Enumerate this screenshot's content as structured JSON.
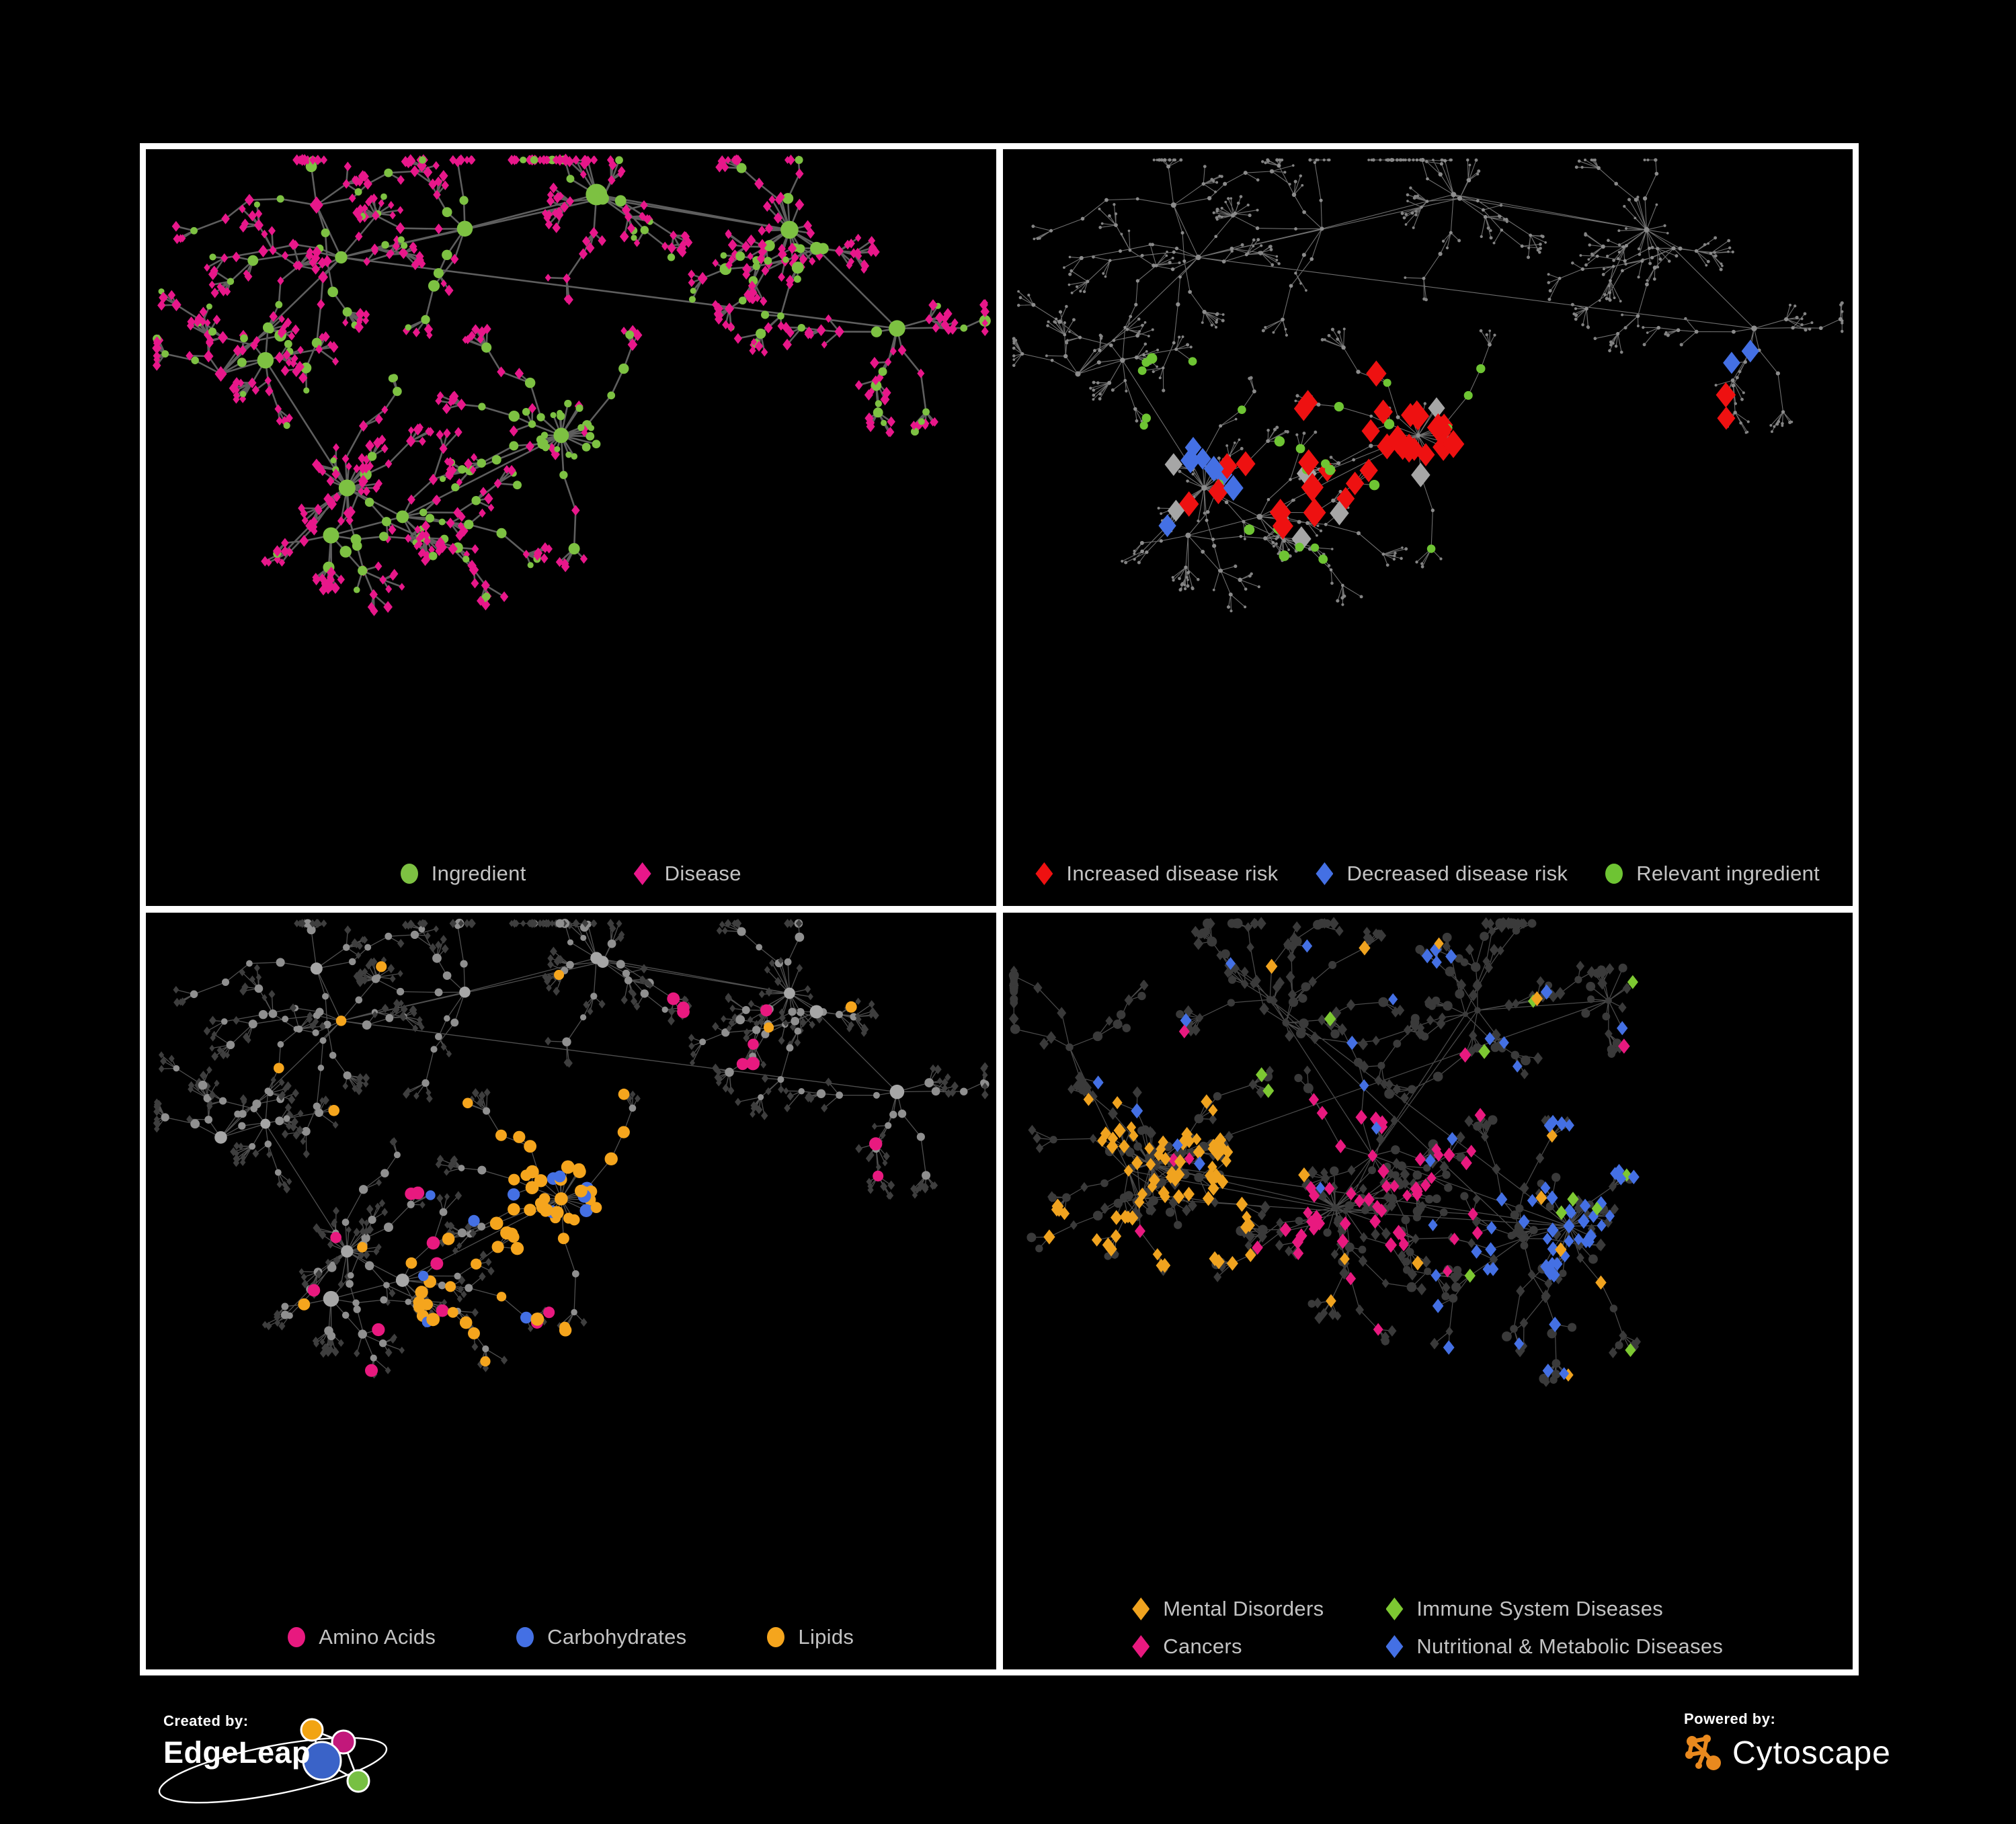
{
  "figure": {
    "background": "#000000",
    "frame_color": "#FFFFFF"
  },
  "panels": [
    {
      "name": "ingredient-disease-network",
      "layout": "A",
      "legend": [
        {
          "shape": "circle",
          "color": "#7DC142",
          "label": "Ingredient"
        },
        {
          "shape": "diamond",
          "color": "#E8178A",
          "label": "Disease"
        }
      ],
      "style": {
        "edge": {
          "color": "#6F6F6F",
          "width": 2.6,
          "opacity": 0.85
        },
        "mode": "twoClass",
        "circleColor": "#7DC142",
        "diamondColor": "#E8178A",
        "hub": {
          "circleProb": 0.72,
          "rCircle": [
            9,
            16
          ],
          "rDiamond": [
            8,
            11
          ]
        },
        "mid": {
          "circleProb": 0.4,
          "rCircle": [
            5,
            9
          ],
          "rDiamond": [
            5,
            7.5
          ]
        },
        "leaf": {
          "circleProb": 0.13,
          "rCircle": [
            4.5,
            6.5
          ],
          "rDiamond": [
            4.5,
            7
          ]
        },
        "boost": {
          "region": [
            0.42,
            0.3,
            0.2,
            0.22
          ],
          "circleProb": 0.8
        }
      }
    },
    {
      "name": "disease-risk-network",
      "layout": "A",
      "legend": [
        {
          "shape": "diamond",
          "color": "#EE1111",
          "label": "Increased disease risk"
        },
        {
          "shape": "diamond",
          "color": "#4470E4",
          "label": "Decreased disease risk"
        },
        {
          "shape": "circle",
          "color": "#6EC433",
          "label": "Relevant ingredient"
        }
      ],
      "style": {
        "edge": {
          "color": "#9C9C9C",
          "width": 1.1,
          "opacity": 0.7
        },
        "mode": "baseHighlight",
        "base": {
          "hub": {
            "shape": "circle",
            "color": "#8C8C8C",
            "r": [
              3,
              4.5
            ]
          },
          "mid": {
            "shape": "circle",
            "color": "#8C8C8C",
            "r": [
              2.2,
              3.2
            ]
          },
          "leaf": {
            "shape": "circle",
            "color": "#848484",
            "r": [
              1.8,
              2.6
            ]
          }
        },
        "highlights": [
          {
            "shape": "diamond",
            "color": "#EE1111",
            "size": [
              13,
              17
            ],
            "count": 28,
            "region": [
              0.34,
              0.28,
              0.38,
              0.26
            ]
          },
          {
            "shape": "diamond",
            "color": "#EE1111",
            "size": [
              13,
              16
            ],
            "count": 6,
            "region": [
              0.12,
              0.4,
              0.2,
              0.18
            ]
          },
          {
            "shape": "diamond",
            "color": "#EE1111",
            "size": [
              12,
              15
            ],
            "count": 3,
            "region": [
              0.42,
              0.66,
              0.28,
              0.16
            ]
          },
          {
            "shape": "diamond",
            "color": "#EE1111",
            "size": [
              12,
              15
            ],
            "count": 2,
            "region": [
              0.72,
              0.3,
              0.16,
              0.14
            ]
          },
          {
            "shape": "diamond",
            "color": "#4470E4",
            "size": [
              12,
              15
            ],
            "count": 7,
            "region": [
              0.1,
              0.4,
              0.16,
              0.2
            ]
          },
          {
            "shape": "diamond",
            "color": "#4470E4",
            "size": [
              12,
              14
            ],
            "count": 2,
            "region": [
              0.82,
              0.26,
              0.1,
              0.08
            ]
          },
          {
            "shape": "diamond",
            "color": "#A6A6A6",
            "size": [
              12,
              15
            ],
            "count": 7,
            "region": [
              0.14,
              0.34,
              0.52,
              0.26
            ]
          },
          {
            "shape": "circle",
            "color": "#6EC433",
            "size": [
              6,
              8
            ],
            "count": 22,
            "region": [
              0.12,
              0.28,
              0.52,
              0.3
            ]
          },
          {
            "shape": "circle",
            "color": "#6EC433",
            "size": [
              6,
              8
            ],
            "count": 5,
            "region": [
              0.3,
              0.58,
              0.38,
              0.2
            ]
          }
        ]
      }
    },
    {
      "name": "nutrient-class-network",
      "layout": "A",
      "legend": [
        {
          "shape": "circle",
          "color": "#E8197F",
          "label": "Amino Acids"
        },
        {
          "shape": "circle",
          "color": "#4470E4",
          "label": "Carbohydrates"
        },
        {
          "shape": "circle",
          "color": "#F5A51D",
          "label": "Lipids"
        }
      ],
      "style": {
        "edge": {
          "color": "#909090",
          "width": 1.3,
          "opacity": 0.55
        },
        "mode": "baseHighlight",
        "base": {
          "hub": {
            "shape": "circle",
            "color": "#A6A6A6",
            "r": [
              7,
              12
            ]
          },
          "mid": {
            "shape": "circle",
            "color": "#8F8F8F",
            "r": [
              4.5,
              7
            ]
          },
          "leaf": {
            "shape": "diamond",
            "color": "#3E3E3E",
            "r": [
              4,
              5.5
            ]
          }
        },
        "highlights": [
          {
            "shape": "circle",
            "color": "#F5A51D",
            "size": [
              8,
              10
            ],
            "count": 38,
            "region": [
              0.4,
              0.3,
              0.24,
              0.22
            ]
          },
          {
            "shape": "circle",
            "color": "#4470E4",
            "size": [
              8,
              10
            ],
            "count": 10,
            "region": [
              0.4,
              0.3,
              0.22,
              0.2
            ]
          },
          {
            "shape": "circle",
            "color": "#F5A51D",
            "size": [
              8,
              10
            ],
            "count": 16,
            "region": [
              0.26,
              0.48,
              0.24,
              0.2
            ]
          },
          {
            "shape": "circle",
            "color": "#F5A51D",
            "size": [
              7,
              9
            ],
            "count": 14,
            "region": [
              0.05,
              0.05,
              0.9,
              0.8
            ]
          },
          {
            "shape": "circle",
            "color": "#4470E4",
            "size": [
              7,
              9
            ],
            "count": 5,
            "region": [
              0.28,
              0.28,
              0.6,
              0.5
            ]
          },
          {
            "shape": "circle",
            "color": "#E8197F",
            "size": [
              8,
              10
            ],
            "count": 10,
            "region": [
              0.02,
              0.28,
              0.46,
              0.58
            ]
          },
          {
            "shape": "circle",
            "color": "#E8197F",
            "size": [
              8,
              10
            ],
            "count": 10,
            "region": [
              0.4,
              0.08,
              0.56,
              0.78
            ]
          }
        ]
      }
    },
    {
      "name": "disease-category-network",
      "layout": "B",
      "legend_columns": 2,
      "legend": [
        {
          "shape": "diamond",
          "color": "#F0A31F",
          "label": "Mental Disorders"
        },
        {
          "shape": "diamond",
          "color": "#7DC832",
          "label": "Immune System Diseases"
        },
        {
          "shape": "diamond",
          "color": "#E8197F",
          "label": "Cancers"
        },
        {
          "shape": "diamond",
          "color": "#4470E4",
          "label": "Nutritional & Metabolic Diseases"
        }
      ],
      "style": {
        "edge": {
          "color": "#6A6A6A",
          "width": 1.25,
          "opacity": 0.7
        },
        "mode": "baseHighlight",
        "base": {
          "hub": {
            "shape": "circle",
            "color": "#3C3C3C",
            "r": [
              4,
              6
            ]
          },
          "mid": {
            "shape": "mix",
            "color": "#3A3A3A",
            "r": [
              5.5,
              7.5
            ]
          },
          "leaf": {
            "shape": "mix",
            "color": "#3A3A3A",
            "r": [
              5.5,
              7.5
            ]
          }
        },
        "highlights": [
          {
            "shape": "diamond",
            "color": "#F0A31F",
            "size": [
              7,
              9
            ],
            "count": 78,
            "region": [
              0.02,
              0.26,
              0.26,
              0.28
            ]
          },
          {
            "shape": "diamond",
            "color": "#F0A31F",
            "size": [
              7,
              9
            ],
            "count": 14,
            "region": [
              0.02,
              0.02,
              0.96,
              0.92
            ]
          },
          {
            "shape": "diamond",
            "color": "#E8197F",
            "size": [
              7,
              9
            ],
            "count": 50,
            "region": [
              0.32,
              0.26,
              0.26,
              0.28
            ]
          },
          {
            "shape": "diamond",
            "color": "#E8197F",
            "size": [
              7,
              9
            ],
            "count": 8,
            "region": [
              0.82,
              0.16,
              0.16,
              0.16
            ]
          },
          {
            "shape": "diamond",
            "color": "#E8197F",
            "size": [
              7,
              9
            ],
            "count": 12,
            "region": [
              0.02,
              0.02,
              0.96,
              0.92
            ]
          },
          {
            "shape": "diamond",
            "color": "#4470E4",
            "size": [
              7,
              9
            ],
            "count": 32,
            "region": [
              0.56,
              0.28,
              0.24,
              0.26
            ]
          },
          {
            "shape": "diamond",
            "color": "#4470E4",
            "size": [
              7,
              9
            ],
            "count": 26,
            "region": [
              0.02,
              0.02,
              0.96,
              0.4
            ]
          },
          {
            "shape": "diamond",
            "color": "#4470E4",
            "size": [
              7,
              9
            ],
            "count": 14,
            "region": [
              0.5,
              0.45,
              0.48,
              0.48
            ]
          },
          {
            "shape": "diamond",
            "color": "#7DC832",
            "size": [
              7,
              9
            ],
            "count": 12,
            "region": [
              0.06,
              0.06,
              0.88,
              0.84
            ]
          }
        ]
      }
    }
  ],
  "layouts": {
    "A": {
      "seed": 1137,
      "maxNodes": 800,
      "clusters": [
        [
          0.2,
          0.1,
          0.05,
          2,
          5,
          0
        ],
        [
          0.36,
          0.06,
          0.04,
          1,
          4,
          0
        ],
        [
          0.55,
          0.08,
          0.04,
          2,
          5,
          0
        ],
        [
          0.76,
          0.14,
          0.05,
          2,
          5,
          14
        ],
        [
          0.9,
          0.24,
          0.04,
          1,
          4,
          0
        ],
        [
          0.1,
          0.28,
          0.05,
          2,
          5,
          0
        ],
        [
          0.25,
          0.52,
          0.06,
          3,
          6,
          18
        ],
        [
          0.53,
          0.42,
          0.05,
          3,
          6,
          22
        ],
        [
          0.47,
          0.62,
          0.04,
          2,
          5,
          0
        ],
        [
          0.7,
          0.48,
          0.05,
          2,
          5,
          12
        ],
        [
          0.33,
          0.76,
          0.04,
          2,
          5,
          0
        ],
        [
          0.52,
          0.86,
          0.04,
          2,
          5,
          26
        ],
        [
          0.74,
          0.72,
          0.04,
          2,
          5,
          0
        ],
        [
          0.12,
          0.66,
          0.04,
          1,
          4,
          0
        ],
        [
          0.88,
          0.55,
          0.04,
          1,
          4,
          0
        ],
        [
          0.64,
          0.68,
          0.04,
          1,
          4,
          0
        ],
        [
          0.82,
          0.36,
          0.04,
          1,
          4,
          0
        ]
      ]
    },
    "B": {
      "seed": 7707,
      "maxNodes": 800,
      "clusters": [
        [
          0.13,
          0.4,
          0.06,
          3,
          6,
          26
        ],
        [
          0.42,
          0.38,
          0.06,
          3,
          6,
          24
        ],
        [
          0.66,
          0.44,
          0.05,
          2,
          6,
          20
        ],
        [
          0.08,
          0.16,
          0.04,
          1,
          4,
          0
        ],
        [
          0.3,
          0.12,
          0.05,
          2,
          5,
          0
        ],
        [
          0.52,
          0.1,
          0.05,
          2,
          5,
          0
        ],
        [
          0.74,
          0.12,
          0.05,
          2,
          5,
          10
        ],
        [
          0.9,
          0.24,
          0.04,
          1,
          4,
          8
        ],
        [
          0.18,
          0.68,
          0.05,
          2,
          5,
          0
        ],
        [
          0.42,
          0.74,
          0.05,
          2,
          5,
          14
        ],
        [
          0.66,
          0.76,
          0.05,
          2,
          5,
          0
        ],
        [
          0.88,
          0.6,
          0.04,
          1,
          4,
          0
        ],
        [
          0.55,
          0.58,
          0.04,
          1,
          4,
          0
        ],
        [
          0.3,
          0.55,
          0.04,
          1,
          4,
          0
        ],
        [
          0.8,
          0.88,
          0.03,
          1,
          3,
          0
        ],
        [
          0.1,
          0.88,
          0.03,
          1,
          3,
          0
        ]
      ]
    }
  },
  "footer": {
    "created_by": {
      "label": "Created by:",
      "brand": "EdgeLeap"
    },
    "powered_by": {
      "label": "Powered by:",
      "brand": "Cytoscape"
    },
    "edgeleap_logo_colors": {
      "orange": "#F2A413",
      "magenta": "#C2187B",
      "blue": "#3A63C8",
      "green": "#77C043"
    },
    "cytoscape_logo_color": "#E9891E"
  }
}
